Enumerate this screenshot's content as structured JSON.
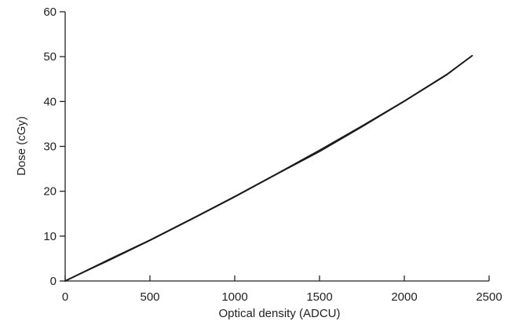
{
  "chart_data": {
    "type": "line",
    "xlabel": "Optical density (ADCU)",
    "ylabel": "Dose (cGy)",
    "xlim": [
      0,
      2500
    ],
    "ylim": [
      0,
      60
    ],
    "xticks": [
      0,
      500,
      1000,
      1500,
      2000,
      2500
    ],
    "yticks": [
      0,
      10,
      20,
      30,
      40,
      50,
      60
    ],
    "grid": false,
    "series": [
      {
        "values_x": [
          0,
          250,
          500,
          750,
          1000,
          1250,
          1500,
          1750,
          2000,
          2250,
          2400
        ],
        "values_y": [
          0,
          4.6,
          9.1,
          13.9,
          18.8,
          23.9,
          29.1,
          34.5,
          40.1,
          46.0,
          50.2
        ],
        "color": "#1a1a1a"
      },
      {
        "values_x": [
          0,
          250,
          500,
          750,
          1000,
          1250,
          1500,
          1750,
          2000,
          2250,
          2400
        ],
        "values_y": [
          0,
          4.4,
          9.0,
          13.8,
          18.7,
          23.8,
          28.8,
          34.3,
          40.0,
          45.9,
          50.2
        ],
        "color": "#1a1a1a"
      }
    ]
  }
}
